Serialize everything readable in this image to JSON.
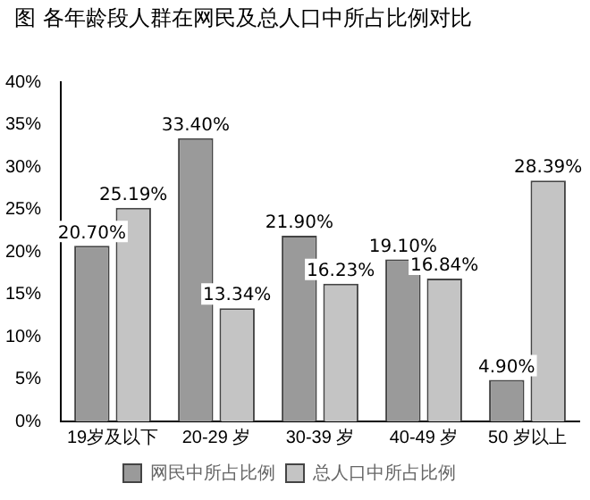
{
  "chart_data": {
    "type": "bar",
    "title": "图 各年龄段人群在网民及总人口中所占比例对比",
    "categories": [
      "19岁及以下",
      "20-29 岁",
      "30-39 岁",
      "40-49 岁",
      "50 岁以上"
    ],
    "series": [
      {
        "name": "网民中所占比例",
        "color": "#9a9a9a",
        "values": [
          20.7,
          33.4,
          21.9,
          19.1,
          4.9
        ],
        "value_labels": [
          "20.70%",
          "33.40%",
          "21.90%",
          "19.10%",
          "4.90%"
        ]
      },
      {
        "name": "总人口中所占比例",
        "color": "#c4c4c4",
        "values": [
          25.19,
          13.34,
          16.23,
          16.84,
          28.39
        ],
        "value_labels": [
          "25.19%",
          "13.34%",
          "16.23%",
          "16.84%",
          "28.39%"
        ]
      }
    ],
    "ylim": [
      0,
      40
    ],
    "yticks": [
      {
        "value": 0,
        "label": "0%"
      },
      {
        "value": 5,
        "label": "5%"
      },
      {
        "value": 10,
        "label": "10%"
      },
      {
        "value": 15,
        "label": "15%"
      },
      {
        "value": 20,
        "label": "20%"
      },
      {
        "value": 25,
        "label": "25%"
      },
      {
        "value": 30,
        "label": "30%"
      },
      {
        "value": 35,
        "label": "35%"
      },
      {
        "value": 40,
        "label": "40%"
      }
    ],
    "grid": false,
    "legend": "bottom"
  }
}
